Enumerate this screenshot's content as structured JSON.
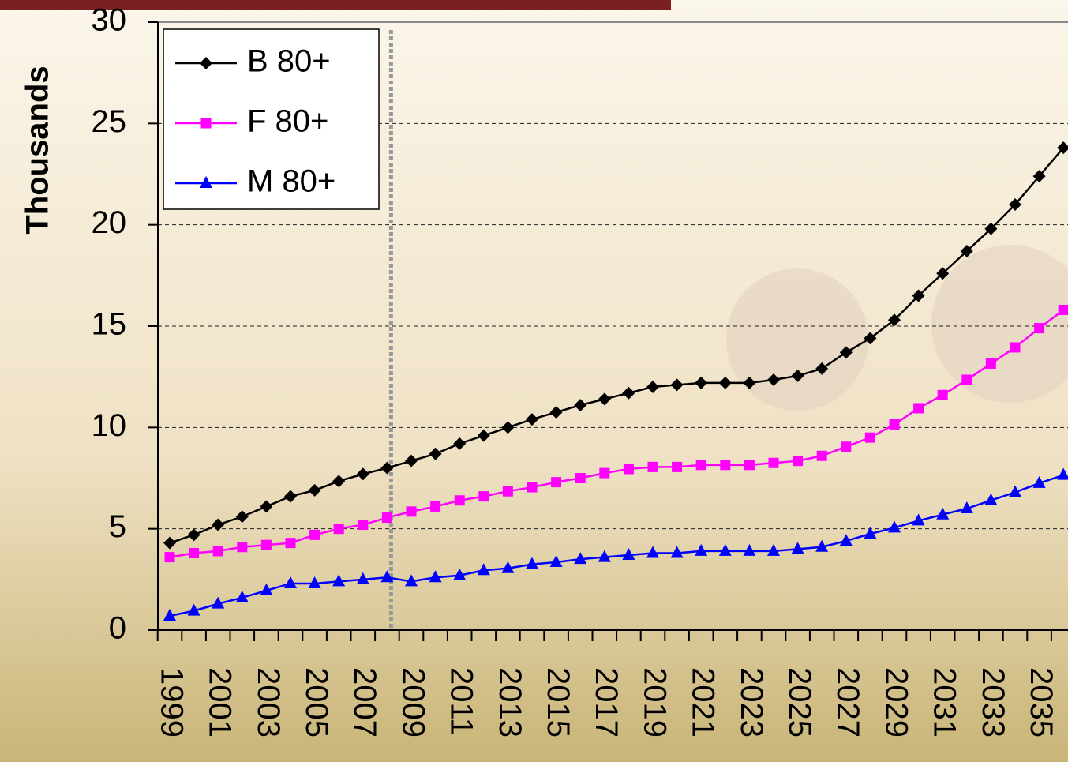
{
  "chart_data": {
    "type": "line",
    "y_label": "Thousands",
    "categories": [
      "1999",
      null,
      "2001",
      null,
      "2003",
      null,
      "2005",
      null,
      "2007",
      null,
      "2009",
      null,
      "2011",
      null,
      "2013",
      null,
      "2015",
      null,
      "2017",
      null,
      "2019",
      null,
      "2021",
      null,
      "2023",
      null,
      "2025",
      null,
      "2027",
      null,
      "2029",
      null,
      "2031",
      null,
      "2033",
      null,
      "2035",
      null
    ],
    "series": [
      {
        "name": "B 80+",
        "color": "#000000",
        "marker": "diamond",
        "values": [
          4.3,
          4.7,
          5.2,
          5.6,
          6.1,
          6.6,
          6.9,
          7.35,
          7.7,
          8.0,
          8.35,
          8.7,
          9.2,
          9.6,
          10.0,
          10.4,
          10.75,
          11.1,
          11.4,
          11.7,
          12.0,
          12.1,
          12.2,
          12.2,
          12.2,
          12.35,
          12.55,
          12.9,
          13.7,
          14.4,
          15.3,
          16.5,
          17.6,
          18.7,
          19.8,
          21.0,
          22.4,
          23.8
        ]
      },
      {
        "name": "F 80+",
        "color": "#ff00ff",
        "marker": "square",
        "values": [
          3.6,
          3.8,
          3.9,
          4.1,
          4.2,
          4.3,
          4.7,
          5.0,
          5.2,
          5.55,
          5.85,
          6.1,
          6.4,
          6.6,
          6.85,
          7.05,
          7.3,
          7.5,
          7.75,
          7.95,
          8.05,
          8.05,
          8.15,
          8.15,
          8.15,
          8.25,
          8.35,
          8.6,
          9.05,
          9.5,
          10.15,
          10.95,
          11.6,
          12.35,
          13.15,
          13.95,
          14.9,
          15.8
        ]
      },
      {
        "name": "M 80+",
        "color": "#0000ff",
        "marker": "triangle",
        "values": [
          0.7,
          0.95,
          1.3,
          1.6,
          1.95,
          2.3,
          2.3,
          2.4,
          2.5,
          2.6,
          2.4,
          2.6,
          2.7,
          2.95,
          3.05,
          3.25,
          3.35,
          3.5,
          3.6,
          3.7,
          3.8,
          3.8,
          3.9,
          3.9,
          3.9,
          3.9,
          4.0,
          4.1,
          4.4,
          4.75,
          5.05,
          5.4,
          5.7,
          6.0,
          6.4,
          6.8,
          7.25,
          7.65
        ]
      }
    ],
    "ylim": [
      0,
      30
    ],
    "yticks": [
      0,
      5,
      10,
      15,
      20,
      25,
      30
    ],
    "grid": true
  }
}
